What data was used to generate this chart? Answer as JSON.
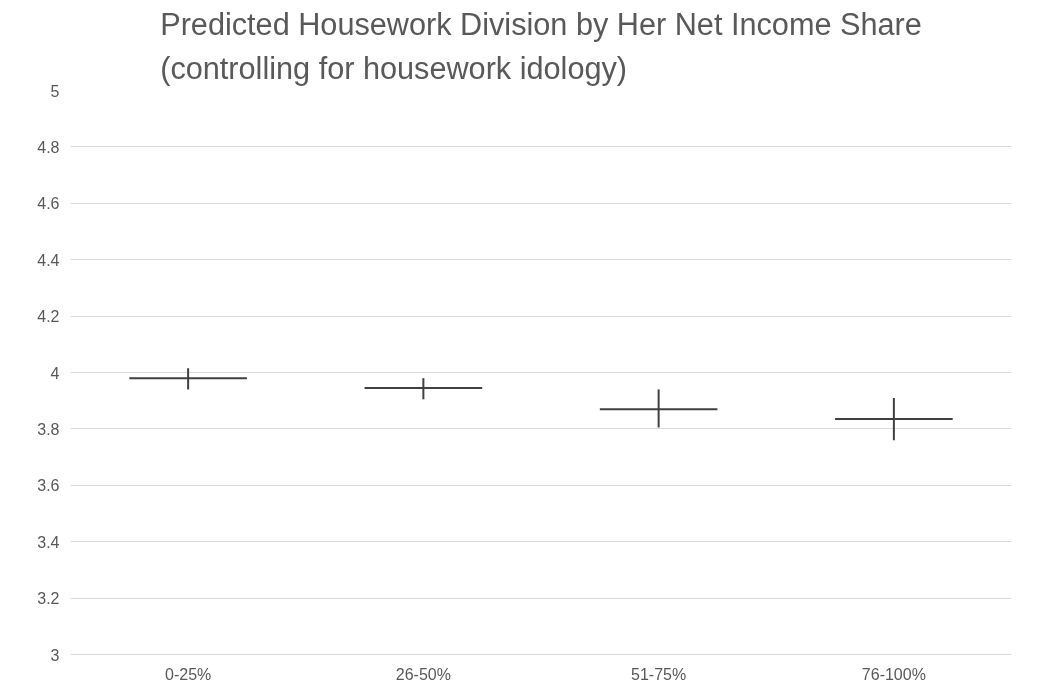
{
  "chart_data": {
    "type": "candlestick",
    "title": "Predicted Housework Division by Her Net Income Share\n(controlling for housework idology)",
    "categories": [
      "0-25%",
      "26-50%",
      "51-75%",
      "76-100%"
    ],
    "ohlc": [
      [
        3.98,
        4.015,
        3.94,
        3.98
      ],
      [
        3.945,
        3.98,
        3.905,
        3.945
      ],
      [
        3.87,
        3.94,
        3.805,
        3.87
      ],
      [
        3.835,
        3.91,
        3.76,
        3.835
      ]
    ],
    "color": "#404040",
    "ylim": [
      3,
      5
    ],
    "yticks": [
      3,
      3.2,
      3.4,
      3.6,
      3.8,
      4,
      4.2,
      4.4,
      4.6,
      4.8,
      5
    ],
    "grid": "y"
  }
}
